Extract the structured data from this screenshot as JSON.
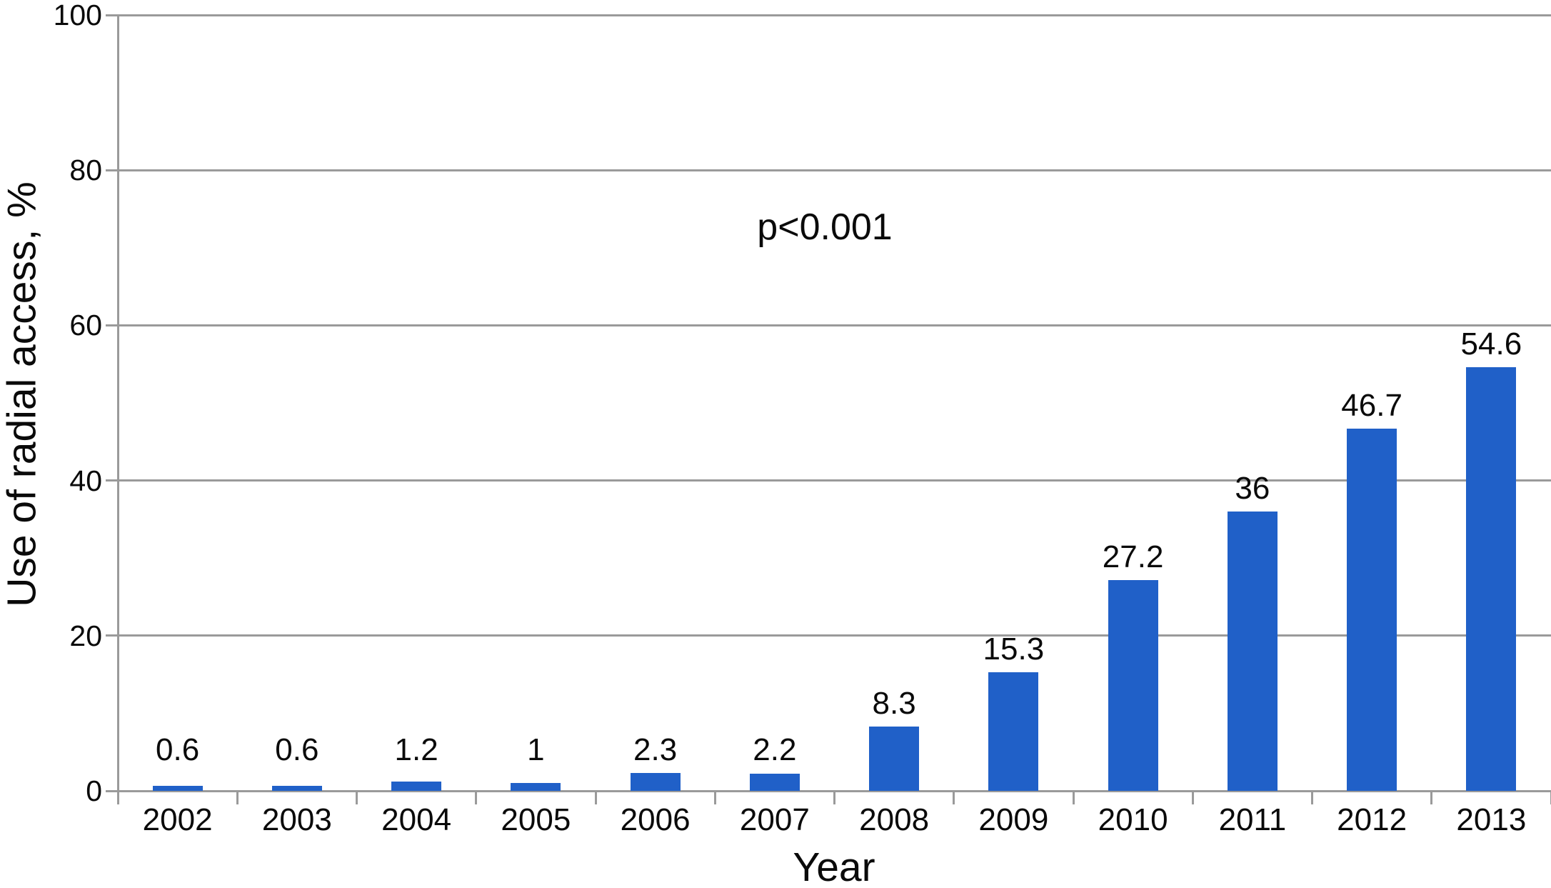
{
  "chart_data": {
    "type": "bar",
    "categories": [
      "2002",
      "2003",
      "2004",
      "2005",
      "2006",
      "2007",
      "2008",
      "2009",
      "2010",
      "2011",
      "2012",
      "2013"
    ],
    "values": [
      0.6,
      0.6,
      1.2,
      1,
      2.3,
      2.2,
      8.3,
      15.3,
      27.2,
      36,
      46.7,
      54.6
    ],
    "bar_labels": [
      "0.6",
      "0.6",
      "1.2",
      "1",
      "2.3",
      "2.2",
      "8.3",
      "15.3",
      "27.2",
      "36",
      "46.7",
      "54.6"
    ],
    "title": "",
    "xlabel": "Year",
    "ylabel": "Use of radial access, %",
    "ylim": [
      0,
      100
    ],
    "yticks": [
      0,
      20,
      40,
      60,
      80,
      100
    ],
    "annotation": "p<0.001",
    "grid": true,
    "legend": "none",
    "bar_color": "#2060c8",
    "axis_color": "#9a9a9a",
    "text_color": "#0a0a0a"
  }
}
